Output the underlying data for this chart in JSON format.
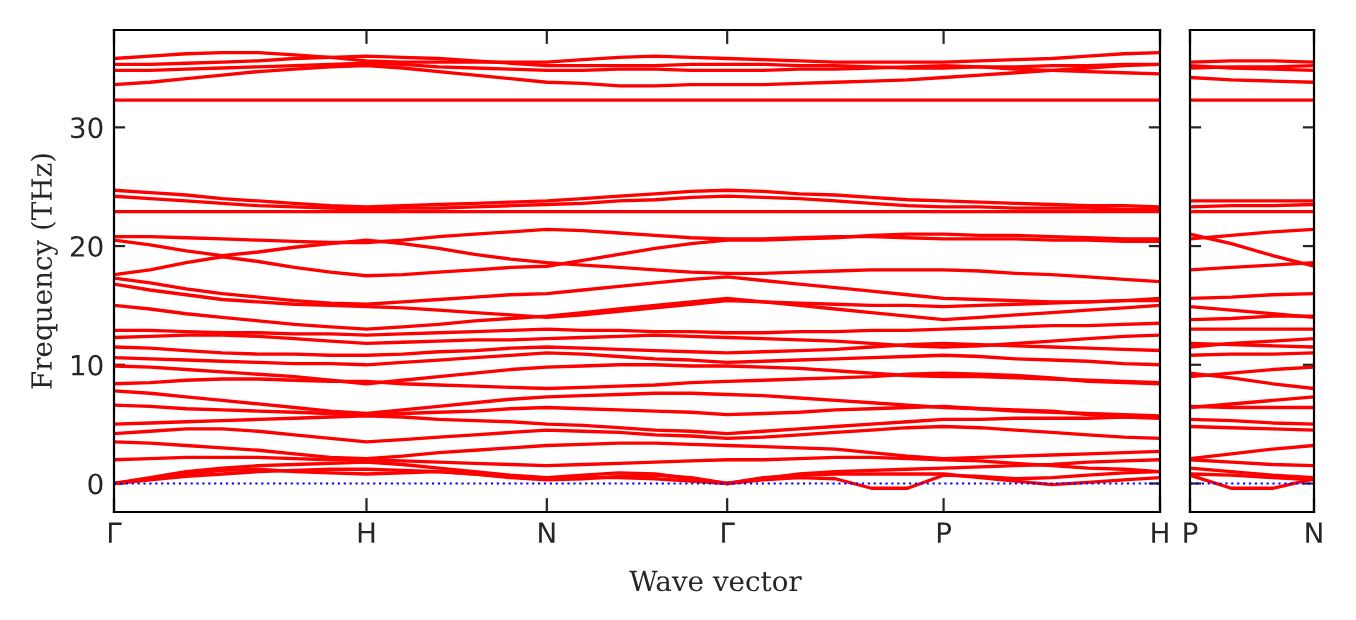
{
  "chart_data": [
    {
      "type": "line",
      "xlabel": "Wave vector",
      "ylabel": "Frequency (THz)",
      "categories": [
        "Γ",
        null,
        null,
        null,
        null,
        null,
        null,
        "H",
        null,
        null,
        null,
        null,
        "N",
        null,
        null,
        null,
        null,
        "Γ",
        null,
        null,
        null,
        null,
        null,
        "P",
        null,
        null,
        null,
        null,
        null,
        "H"
      ],
      "ylim": [
        -2.4,
        38.2
      ],
      "yticks": [
        0,
        10,
        20,
        30
      ],
      "ref_lines": [
        {
          "axis": "y",
          "value": 0,
          "color": "#0000ff",
          "line_style": "dotted"
        }
      ],
      "series": [
        {
          "color": "#ff0000",
          "values": [
            35.8,
            36.0,
            36.2,
            36.3,
            36.3,
            36.1,
            35.9,
            35.6,
            35.5,
            35.5,
            35.5,
            35.5,
            35.5,
            35.7,
            35.9,
            36.0,
            35.9,
            35.8,
            35.7,
            35.6,
            35.5,
            35.5,
            35.5,
            35.5,
            35.6,
            35.7,
            35.8,
            36.0,
            36.2,
            36.3
          ]
        },
        {
          "color": "#ff0000",
          "values": [
            35.3,
            35.3,
            35.4,
            35.5,
            35.6,
            35.8,
            35.9,
            36.0,
            35.9,
            35.8,
            35.6,
            35.4,
            35.2,
            35.2,
            35.2,
            35.2,
            35.3,
            35.3,
            35.3,
            35.2,
            35.2,
            35.1,
            35.0,
            35.0,
            35.1,
            35.1,
            35.2,
            35.2,
            35.3,
            35.3
          ]
        },
        {
          "color": "#ff0000",
          "values": [
            34.8,
            34.8,
            34.9,
            35.0,
            35.1,
            35.2,
            35.3,
            35.4,
            35.3,
            35.1,
            35.0,
            34.9,
            34.8,
            34.8,
            34.9,
            34.9,
            34.8,
            34.8,
            34.8,
            34.9,
            34.9,
            35.0,
            35.1,
            35.2,
            35.1,
            34.9,
            34.8,
            34.7,
            34.6,
            34.5
          ]
        },
        {
          "color": "#ff0000",
          "values": [
            33.6,
            33.8,
            34.1,
            34.4,
            34.7,
            34.9,
            35.1,
            35.2,
            35.0,
            34.7,
            34.4,
            34.1,
            33.8,
            33.7,
            33.5,
            33.5,
            33.6,
            33.6,
            33.6,
            33.7,
            33.8,
            33.9,
            34.0,
            34.2,
            34.4,
            34.6,
            34.8,
            35.0,
            35.2,
            35.3
          ]
        },
        {
          "color": "#ff0000",
          "values": [
            32.3,
            32.3,
            32.3,
            32.3,
            32.3,
            32.3,
            32.3,
            32.3,
            32.3,
            32.3,
            32.3,
            32.3,
            32.3,
            32.3,
            32.3,
            32.3,
            32.3,
            32.3,
            32.3,
            32.3,
            32.3,
            32.3,
            32.3,
            32.3,
            32.3,
            32.3,
            32.3,
            32.3,
            32.3,
            32.3
          ]
        },
        {
          "color": "#ff0000",
          "values": [
            24.7,
            24.5,
            24.3,
            24.0,
            23.8,
            23.6,
            23.4,
            23.3,
            23.4,
            23.5,
            23.6,
            23.7,
            23.8,
            24.0,
            24.2,
            24.4,
            24.6,
            24.7,
            24.6,
            24.4,
            24.3,
            24.1,
            23.9,
            23.8,
            23.7,
            23.6,
            23.5,
            23.4,
            23.4,
            23.3
          ]
        },
        {
          "color": "#ff0000",
          "values": [
            24.2,
            24.0,
            23.8,
            23.6,
            23.4,
            23.3,
            23.2,
            23.1,
            23.2,
            23.2,
            23.3,
            23.4,
            23.5,
            23.6,
            23.8,
            23.9,
            24.1,
            24.2,
            24.1,
            24.0,
            23.8,
            23.6,
            23.4,
            23.3,
            23.3,
            23.2,
            23.2,
            23.2,
            23.1,
            23.1
          ]
        },
        {
          "color": "#ff0000",
          "values": [
            22.9,
            22.9,
            22.9,
            22.9,
            22.9,
            22.9,
            22.9,
            22.9,
            22.9,
            22.9,
            22.9,
            22.9,
            22.9,
            22.9,
            22.9,
            22.9,
            22.9,
            22.9,
            22.9,
            22.9,
            22.9,
            22.9,
            22.9,
            22.9,
            22.9,
            22.9,
            22.9,
            22.9,
            22.9,
            22.9
          ]
        },
        {
          "color": "#ff0000",
          "values": [
            20.8,
            20.8,
            20.7,
            20.6,
            20.5,
            20.4,
            20.3,
            20.3,
            20.5,
            20.8,
            21.0,
            21.2,
            21.4,
            21.3,
            21.1,
            20.9,
            20.7,
            20.6,
            20.6,
            20.7,
            20.8,
            20.8,
            20.7,
            20.6,
            20.6,
            20.6,
            20.5,
            20.5,
            20.4,
            20.4
          ]
        },
        {
          "color": "#ff0000",
          "values": [
            20.5,
            20.1,
            19.6,
            19.2,
            19.5,
            19.9,
            20.2,
            20.5,
            20.2,
            19.8,
            19.3,
            18.9,
            18.6,
            18.4,
            18.2,
            18.0,
            17.8,
            17.7,
            17.7,
            17.8,
            17.9,
            18.0,
            18.0,
            18.0,
            17.9,
            17.7,
            17.6,
            17.4,
            17.2,
            17.0
          ]
        },
        {
          "color": "#ff0000",
          "values": [
            17.6,
            18.0,
            18.6,
            19.1,
            18.7,
            18.2,
            17.8,
            17.5,
            17.6,
            17.8,
            18.0,
            18.2,
            18.3,
            18.8,
            19.3,
            19.8,
            20.2,
            20.5,
            20.5,
            20.6,
            20.7,
            20.9,
            21.0,
            21.0,
            20.9,
            20.9,
            20.8,
            20.7,
            20.6,
            20.6
          ]
        },
        {
          "color": "#ff0000",
          "values": [
            17.3,
            16.9,
            16.4,
            16.0,
            15.7,
            15.4,
            15.2,
            15.1,
            15.3,
            15.5,
            15.7,
            15.9,
            16.0,
            16.3,
            16.6,
            16.9,
            17.2,
            17.4,
            17.1,
            16.8,
            16.5,
            16.2,
            15.9,
            15.6,
            15.5,
            15.4,
            15.3,
            15.3,
            15.4,
            15.6
          ]
        },
        {
          "color": "#ff0000",
          "values": [
            16.8,
            16.3,
            15.9,
            15.5,
            15.3,
            15.1,
            15.0,
            14.9,
            14.8,
            14.6,
            14.4,
            14.2,
            14.0,
            14.2,
            14.5,
            14.8,
            15.1,
            15.4,
            15.3,
            15.2,
            15.1,
            15.0,
            15.0,
            14.9,
            15.0,
            15.1,
            15.2,
            15.3,
            15.4,
            15.4
          ]
        },
        {
          "color": "#ff0000",
          "values": [
            15.0,
            14.7,
            14.3,
            14.0,
            13.7,
            13.4,
            13.2,
            13.0,
            13.2,
            13.4,
            13.7,
            13.9,
            14.1,
            14.4,
            14.7,
            15.0,
            15.3,
            15.6,
            15.3,
            15.0,
            14.7,
            14.4,
            14.1,
            13.8,
            14.0,
            14.2,
            14.4,
            14.6,
            14.8,
            15.0
          ]
        },
        {
          "color": "#ff0000",
          "values": [
            12.9,
            12.9,
            12.8,
            12.7,
            12.7,
            12.6,
            12.6,
            12.5,
            12.6,
            12.7,
            12.8,
            12.9,
            13.0,
            12.9,
            12.9,
            12.8,
            12.8,
            12.7,
            12.7,
            12.8,
            12.8,
            12.9,
            12.9,
            13.0,
            13.1,
            13.2,
            13.3,
            13.3,
            13.4,
            13.5
          ]
        },
        {
          "color": "#ff0000",
          "values": [
            12.3,
            12.4,
            12.5,
            12.5,
            12.4,
            12.2,
            12.0,
            11.8,
            11.9,
            12.0,
            12.1,
            12.1,
            12.2,
            12.3,
            12.4,
            12.5,
            12.4,
            12.3,
            12.2,
            12.1,
            12.0,
            11.8,
            11.6,
            11.5,
            11.6,
            11.8,
            12.0,
            12.2,
            12.4,
            12.5
          ]
        },
        {
          "color": "#ff0000",
          "values": [
            11.5,
            11.4,
            11.2,
            11.0,
            10.9,
            10.9,
            10.8,
            10.8,
            10.9,
            11.1,
            11.2,
            11.4,
            11.5,
            11.4,
            11.3,
            11.2,
            11.1,
            11.0,
            11.1,
            11.2,
            11.3,
            11.5,
            11.7,
            11.8,
            11.7,
            11.6,
            11.5,
            11.4,
            11.3,
            11.2
          ]
        },
        {
          "color": "#ff0000",
          "values": [
            10.6,
            10.5,
            10.4,
            10.3,
            10.2,
            10.1,
            10.1,
            10.0,
            10.2,
            10.4,
            10.6,
            10.8,
            11.0,
            10.9,
            10.7,
            10.5,
            10.4,
            10.2,
            10.3,
            10.4,
            10.5,
            10.6,
            10.7,
            10.8,
            10.7,
            10.5,
            10.4,
            10.3,
            10.1,
            10.0
          ]
        },
        {
          "color": "#ff0000",
          "values": [
            9.9,
            9.8,
            9.6,
            9.4,
            9.2,
            9.0,
            8.7,
            8.4,
            8.7,
            9.0,
            9.3,
            9.6,
            9.8,
            9.9,
            10.0,
            10.0,
            9.9,
            9.9,
            9.8,
            9.7,
            9.5,
            9.3,
            9.1,
            9.0,
            9.0,
            8.9,
            8.8,
            8.7,
            8.6,
            8.5
          ]
        },
        {
          "color": "#ff0000",
          "values": [
            8.4,
            8.5,
            8.7,
            8.8,
            8.8,
            8.7,
            8.6,
            8.6,
            8.4,
            8.3,
            8.2,
            8.1,
            8.0,
            8.1,
            8.2,
            8.3,
            8.5,
            8.6,
            8.7,
            8.8,
            8.9,
            9.0,
            9.2,
            9.3,
            9.2,
            9.1,
            8.9,
            8.6,
            8.5,
            8.4
          ]
        },
        {
          "color": "#ff0000",
          "values": [
            7.8,
            7.6,
            7.3,
            7.0,
            6.7,
            6.4,
            6.1,
            5.9,
            6.2,
            6.5,
            6.8,
            7.1,
            7.3,
            7.4,
            7.5,
            7.6,
            7.6,
            7.5,
            7.4,
            7.2,
            7.0,
            6.8,
            6.6,
            6.4,
            6.3,
            6.1,
            6.0,
            5.9,
            5.8,
            5.7
          ]
        },
        {
          "color": "#ff0000",
          "values": [
            6.6,
            6.5,
            6.3,
            6.2,
            6.1,
            6.0,
            5.9,
            5.8,
            5.9,
            6.0,
            6.1,
            6.3,
            6.4,
            6.3,
            6.2,
            6.1,
            6.0,
            5.8,
            5.9,
            6.0,
            6.2,
            6.3,
            6.4,
            6.5,
            6.3,
            6.2,
            6.1,
            5.8,
            5.6,
            5.5
          ]
        },
        {
          "color": "#ff0000",
          "values": [
            5.0,
            5.1,
            5.2,
            5.3,
            5.4,
            5.5,
            5.6,
            5.7,
            5.6,
            5.4,
            5.3,
            5.2,
            5.0,
            4.9,
            4.7,
            4.5,
            4.4,
            4.2,
            4.4,
            4.6,
            4.8,
            5.0,
            5.2,
            5.4,
            5.4,
            5.5,
            5.5,
            5.5,
            5.6,
            5.6
          ]
        },
        {
          "color": "#ff0000",
          "values": [
            4.2,
            4.4,
            4.6,
            4.6,
            4.4,
            4.1,
            3.8,
            3.5,
            3.7,
            3.9,
            4.1,
            4.3,
            4.5,
            4.4,
            4.3,
            4.1,
            4.0,
            3.8,
            3.9,
            4.1,
            4.3,
            4.5,
            4.7,
            4.8,
            4.7,
            4.5,
            4.3,
            4.1,
            3.9,
            3.8
          ]
        },
        {
          "color": "#ff0000",
          "values": [
            3.5,
            3.4,
            3.2,
            3.0,
            2.8,
            2.5,
            2.2,
            2.1,
            2.3,
            2.6,
            2.8,
            3.0,
            3.2,
            3.3,
            3.4,
            3.4,
            3.3,
            3.2,
            3.1,
            3.0,
            2.9,
            2.6,
            2.3,
            2.1,
            2.2,
            2.3,
            2.4,
            2.5,
            2.6,
            2.7
          ]
        },
        {
          "color": "#ff0000",
          "values": [
            2.0,
            2.1,
            2.2,
            2.2,
            2.2,
            2.1,
            2.0,
            2.0,
            1.9,
            1.8,
            1.7,
            1.6,
            1.5,
            1.6,
            1.7,
            1.8,
            1.9,
            2.0,
            2.0,
            2.1,
            2.2,
            2.2,
            2.1,
            2.0,
            1.9,
            1.7,
            1.5,
            1.3,
            1.2,
            1.0
          ]
        },
        {
          "color": "#ff0000",
          "values": [
            0,
            0.5,
            1.0,
            1.3,
            1.5,
            1.6,
            1.7,
            1.8,
            1.6,
            1.3,
            1.0,
            0.7,
            0.5,
            0.7,
            0.9,
            0.8,
            0.4,
            0,
            0.4,
            0.8,
            1.0,
            1.1,
            1.2,
            1.3,
            1.4,
            1.5,
            1.6,
            1.8,
            1.9,
            2.0
          ]
        },
        {
          "color": "#ff0000",
          "values": [
            0,
            0.3,
            0.6,
            0.8,
            1.0,
            1.1,
            1.2,
            1.2,
            1.1,
            1.0,
            0.8,
            0.6,
            0.4,
            0.5,
            0.5,
            0.4,
            0.2,
            0,
            0.3,
            0.5,
            0.4,
            -0.4,
            -0.4,
            0.7,
            0.6,
            0.4,
            0.5,
            0.7,
            0.9,
            1.0
          ]
        },
        {
          "color": "#ff0000",
          "values": [
            0,
            0.4,
            0.8,
            1.1,
            1.2,
            1.0,
            0.9,
            0.8,
            0.9,
            1.0,
            0.8,
            0.5,
            0.3,
            0.4,
            0.6,
            0.7,
            0.5,
            0,
            0.5,
            0.7,
            0.8,
            0.8,
            0.8,
            0.8,
            0.5,
            0.2,
            -0.1,
            0.1,
            0.3,
            0.5
          ]
        }
      ]
    },
    {
      "type": "line",
      "categories": [
        "P",
        null,
        null,
        "N"
      ],
      "ylim": [
        -2.4,
        38.2
      ],
      "yticks": [
        0,
        10,
        20,
        30
      ],
      "tick_labels": "x",
      "ref_lines": [
        {
          "axis": "y",
          "value": 0,
          "color": "#0000ff",
          "line_style": "dotted"
        }
      ],
      "series": [
        {
          "color": "#ff0000",
          "values": [
            35.5,
            35.6,
            35.6,
            35.5
          ]
        },
        {
          "color": "#ff0000",
          "values": [
            35.0,
            35.1,
            35.1,
            35.2
          ]
        },
        {
          "color": "#ff0000",
          "values": [
            35.2,
            35.0,
            34.9,
            34.8
          ]
        },
        {
          "color": "#ff0000",
          "values": [
            34.2,
            34.0,
            33.9,
            33.8
          ]
        },
        {
          "color": "#ff0000",
          "values": [
            32.3,
            32.3,
            32.3,
            32.3
          ]
        },
        {
          "color": "#ff0000",
          "values": [
            23.8,
            23.8,
            23.8,
            23.8
          ]
        },
        {
          "color": "#ff0000",
          "values": [
            23.3,
            23.4,
            23.4,
            23.5
          ]
        },
        {
          "color": "#ff0000",
          "values": [
            22.9,
            22.9,
            22.9,
            22.9
          ]
        },
        {
          "color": "#ff0000",
          "values": [
            20.6,
            20.9,
            21.2,
            21.4
          ]
        },
        {
          "color": "#ff0000",
          "values": [
            21.0,
            20.2,
            19.2,
            18.3
          ]
        },
        {
          "color": "#ff0000",
          "values": [
            18.0,
            18.2,
            18.4,
            18.6
          ]
        },
        {
          "color": "#ff0000",
          "values": [
            15.6,
            15.7,
            15.9,
            16.0
          ]
        },
        {
          "color": "#ff0000",
          "values": [
            14.9,
            14.6,
            14.3,
            14.0
          ]
        },
        {
          "color": "#ff0000",
          "values": [
            13.8,
            13.9,
            14.1,
            14.1
          ]
        },
        {
          "color": "#ff0000",
          "values": [
            13.0,
            13.0,
            13.0,
            13.0
          ]
        },
        {
          "color": "#ff0000",
          "values": [
            11.5,
            11.8,
            12.0,
            12.2
          ]
        },
        {
          "color": "#ff0000",
          "values": [
            11.8,
            11.7,
            11.6,
            11.5
          ]
        },
        {
          "color": "#ff0000",
          "values": [
            10.8,
            10.9,
            10.9,
            11.0
          ]
        },
        {
          "color": "#ff0000",
          "values": [
            9.0,
            9.3,
            9.6,
            9.8
          ]
        },
        {
          "color": "#ff0000",
          "values": [
            9.3,
            8.9,
            8.4,
            8.0
          ]
        },
        {
          "color": "#ff0000",
          "values": [
            6.4,
            6.7,
            7.0,
            7.3
          ]
        },
        {
          "color": "#ff0000",
          "values": [
            6.5,
            6.4,
            6.4,
            6.4
          ]
        },
        {
          "color": "#ff0000",
          "values": [
            5.4,
            5.3,
            5.1,
            5.0
          ]
        },
        {
          "color": "#ff0000",
          "values": [
            4.8,
            4.7,
            4.6,
            4.5
          ]
        },
        {
          "color": "#ff0000",
          "values": [
            2.1,
            2.5,
            2.9,
            3.2
          ]
        },
        {
          "color": "#ff0000",
          "values": [
            2.0,
            1.8,
            1.6,
            1.5
          ]
        },
        {
          "color": "#ff0000",
          "values": [
            1.3,
            1.0,
            0.7,
            0.5
          ]
        },
        {
          "color": "#ff0000",
          "values": [
            0.7,
            -0.4,
            -0.4,
            0.4
          ]
        },
        {
          "color": "#ff0000",
          "values": [
            0.8,
            0.7,
            0.5,
            0.3
          ]
        }
      ]
    }
  ]
}
